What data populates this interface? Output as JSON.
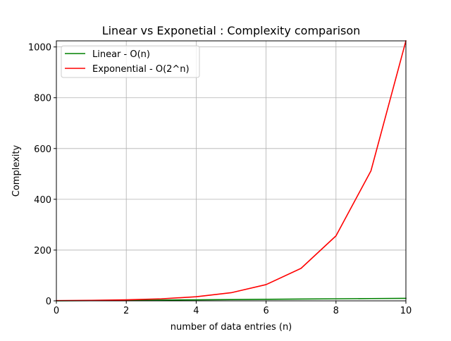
{
  "chart_data": {
    "type": "line",
    "title": "Linear vs Exponetial : Complexity comparison",
    "xlabel": "number of data entries (n)",
    "ylabel": "Complexity",
    "xlim": [
      0,
      10
    ],
    "ylim": [
      0,
      1024
    ],
    "xticks": [
      "0",
      "2",
      "4",
      "6",
      "8",
      "10"
    ],
    "yticks": [
      "0",
      "200",
      "400",
      "600",
      "800",
      "1000"
    ],
    "grid": true,
    "legend_position": "top-left",
    "x": [
      0,
      1,
      2,
      3,
      4,
      5,
      6,
      7,
      8,
      9,
      10
    ],
    "series": [
      {
        "name": "Linear - O(n)",
        "color": "#008000",
        "values": [
          0,
          1,
          2,
          3,
          4,
          5,
          6,
          7,
          8,
          9,
          10
        ]
      },
      {
        "name": "Exponential - O(2^n)",
        "color": "#ff0000",
        "values": [
          1,
          2,
          4,
          8,
          16,
          32,
          64,
          128,
          256,
          512,
          1024
        ]
      }
    ]
  }
}
